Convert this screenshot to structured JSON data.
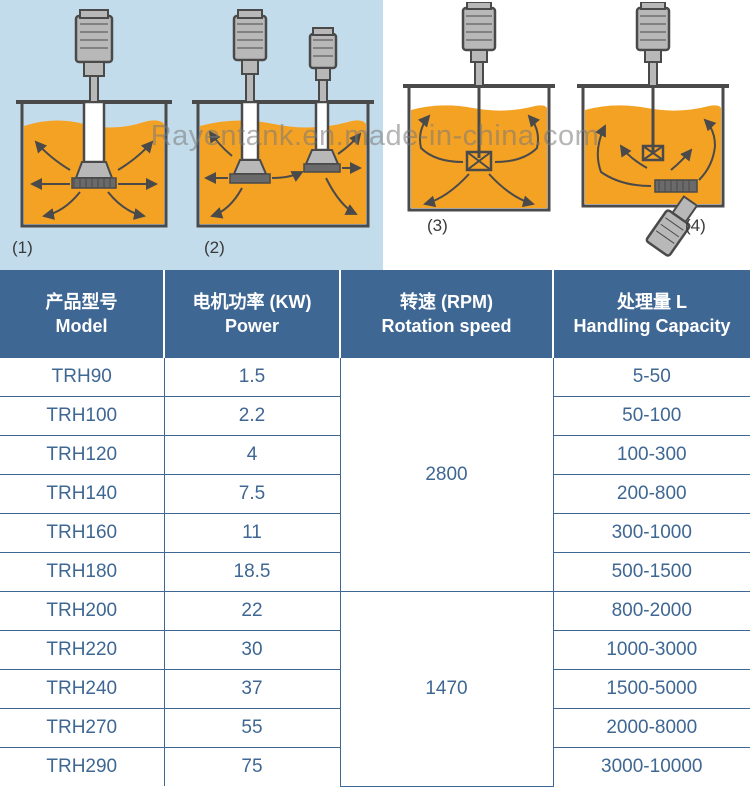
{
  "watermark_text": "Rayentank.en.made-in-china.com",
  "diagrams": {
    "labels": [
      "(1)",
      "(2)",
      "(3)",
      "(4)"
    ],
    "tank_fill": "#f4a224",
    "tank_outline": "#4a4a4a",
    "motor_fill": "#b8b8b8",
    "bg_left": "#c3dceb",
    "bg_right": "#ffffff"
  },
  "table": {
    "header_bg": "#3f6793",
    "header_fg": "#ffffff",
    "cell_fg": "#3f6793",
    "border_color": "#3f6793",
    "columns": [
      {
        "cn": "产品型号",
        "en": "Model"
      },
      {
        "cn": "电机功率 (KW)",
        "en": "Power"
      },
      {
        "cn": "转速 (RPM)",
        "en": "Rotation speed"
      },
      {
        "cn": "处理量 L",
        "en": "Handling Capacity"
      }
    ],
    "rpm_groups": [
      {
        "value": "2800",
        "span": 6
      },
      {
        "value": "1470",
        "span": 5
      }
    ],
    "rows": [
      {
        "model": "TRH90",
        "power": "1.5",
        "capacity": "5-50"
      },
      {
        "model": "TRH100",
        "power": "2.2",
        "capacity": "50-100"
      },
      {
        "model": "TRH120",
        "power": "4",
        "capacity": "100-300"
      },
      {
        "model": "TRH140",
        "power": "7.5",
        "capacity": "200-800"
      },
      {
        "model": "TRH160",
        "power": "11",
        "capacity": "300-1000"
      },
      {
        "model": "TRH180",
        "power": "18.5",
        "capacity": "500-1500"
      },
      {
        "model": "TRH200",
        "power": "22",
        "capacity": "800-2000"
      },
      {
        "model": "TRH220",
        "power": "30",
        "capacity": "1000-3000"
      },
      {
        "model": "TRH240",
        "power": "37",
        "capacity": "1500-5000"
      },
      {
        "model": "TRH270",
        "power": "55",
        "capacity": "2000-8000"
      },
      {
        "model": "TRH290",
        "power": "75",
        "capacity": "3000-10000"
      }
    ]
  }
}
